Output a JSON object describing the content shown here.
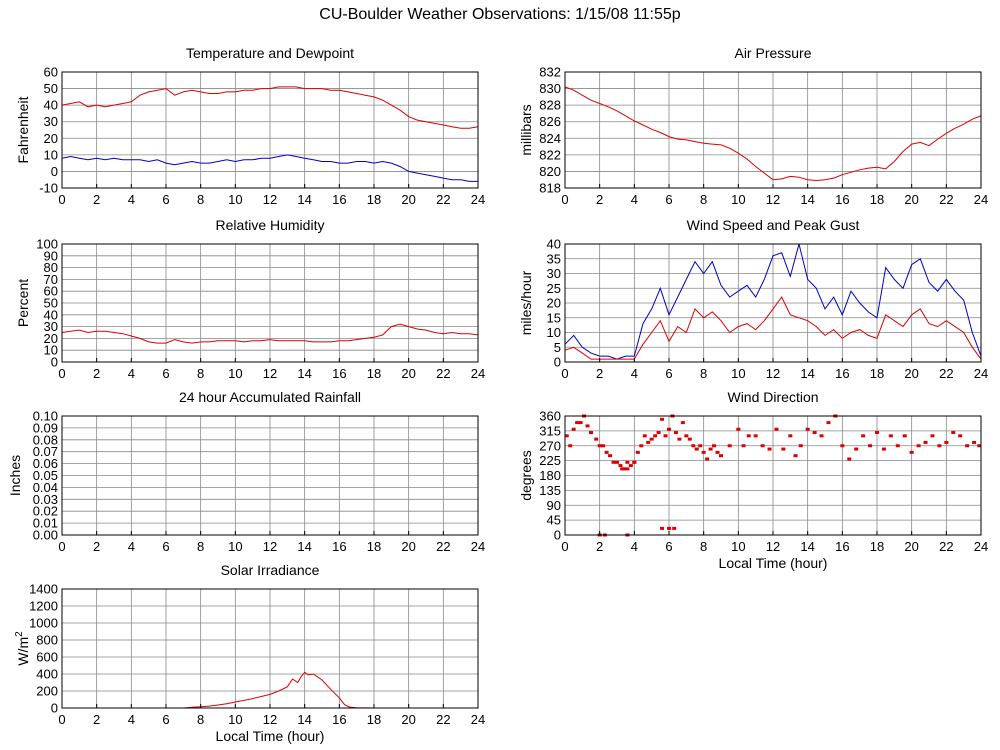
{
  "page": {
    "title": "CU-Boulder Weather Observations: 1/15/08 11:55p"
  },
  "colors": {
    "red": "#dd0000",
    "blue": "#0000cc",
    "grid": "#888888",
    "axis": "#000000"
  },
  "chart_data": [
    {
      "id": "temp",
      "type": "line",
      "title": "Temperature and Dewpoint",
      "ylabel": "Fahrenheit",
      "xlabel": "",
      "xlim": [
        0,
        24
      ],
      "ylim": [
        -10,
        60
      ],
      "xticks": [
        "0",
        "2",
        "4",
        "6",
        "8",
        "10",
        "12",
        "14",
        "16",
        "18",
        "20",
        "22",
        "24"
      ],
      "yticks": [
        "-10",
        "0",
        "10",
        "20",
        "30",
        "40",
        "50",
        "60"
      ],
      "grid": true,
      "series": [
        {
          "color": "#dd0000",
          "x": [
            0,
            0.5,
            1,
            1.5,
            2,
            2.5,
            3,
            3.5,
            4,
            4.5,
            5,
            5.5,
            6,
            6.5,
            7,
            7.5,
            8,
            8.5,
            9,
            9.5,
            10,
            10.5,
            11,
            11.5,
            12,
            12.5,
            13,
            13.5,
            14,
            14.5,
            15,
            15.5,
            16,
            16.5,
            17,
            17.5,
            18,
            18.5,
            19,
            19.5,
            20,
            20.5,
            21,
            21.5,
            22,
            22.5,
            23,
            23.5,
            24
          ],
          "y": [
            40,
            41,
            42,
            39,
            40,
            39,
            40,
            41,
            42,
            46,
            48,
            49,
            50,
            46,
            48,
            49,
            48,
            47,
            47,
            48,
            48,
            49,
            49,
            50,
            50,
            51,
            51,
            51,
            50,
            50,
            50,
            49,
            49,
            48,
            47,
            46,
            45,
            43,
            40,
            37,
            33,
            31,
            30,
            29,
            28,
            27,
            26,
            26,
            27
          ]
        },
        {
          "color": "#0000cc",
          "x": [
            0,
            0.5,
            1,
            1.5,
            2,
            2.5,
            3,
            3.5,
            4,
            4.5,
            5,
            5.5,
            6,
            6.5,
            7,
            7.5,
            8,
            8.5,
            9,
            9.5,
            10,
            10.5,
            11,
            11.5,
            12,
            12.5,
            13,
            13.5,
            14,
            14.5,
            15,
            15.5,
            16,
            16.5,
            17,
            17.5,
            18,
            18.5,
            19,
            19.5,
            20,
            20.5,
            21,
            21.5,
            22,
            22.5,
            23,
            23.5,
            24
          ],
          "y": [
            8,
            9,
            8,
            7,
            8,
            7,
            8,
            7,
            7,
            7,
            6,
            7,
            5,
            4,
            5,
            6,
            5,
            5,
            6,
            7,
            6,
            7,
            7,
            8,
            8,
            9,
            10,
            9,
            8,
            7,
            6,
            6,
            5,
            5,
            6,
            6,
            5,
            6,
            5,
            3,
            0,
            -1,
            -2,
            -3,
            -4,
            -5,
            -5,
            -6,
            -6
          ]
        }
      ]
    },
    {
      "id": "pressure",
      "type": "line",
      "title": "Air Pressure",
      "ylabel": "millibars",
      "xlabel": "",
      "xlim": [
        0,
        24
      ],
      "ylim": [
        818,
        832
      ],
      "xticks": [
        "0",
        "2",
        "4",
        "6",
        "8",
        "10",
        "12",
        "14",
        "16",
        "18",
        "20",
        "22",
        "24"
      ],
      "yticks": [
        "818",
        "820",
        "822",
        "824",
        "826",
        "828",
        "830",
        "832"
      ],
      "grid": true,
      "series": [
        {
          "color": "#dd0000",
          "x": [
            0,
            0.5,
            1,
            1.5,
            2,
            2.5,
            3,
            3.5,
            4,
            4.5,
            5,
            5.5,
            6,
            6.5,
            7,
            7.5,
            8,
            8.5,
            9,
            9.5,
            10,
            10.5,
            11,
            11.5,
            12,
            12.5,
            13,
            13.5,
            14,
            14.5,
            15,
            15.5,
            16,
            16.5,
            17,
            17.5,
            18,
            18.5,
            19,
            19.5,
            20,
            20.5,
            21,
            21.5,
            22,
            22.5,
            23,
            23.5,
            24
          ],
          "y": [
            830.2,
            829.8,
            829.2,
            828.6,
            828.2,
            827.8,
            827.3,
            826.7,
            826.1,
            825.6,
            825.1,
            824.7,
            824.2,
            823.9,
            823.8,
            823.6,
            823.4,
            823.3,
            823.2,
            822.8,
            822.2,
            821.5,
            820.6,
            819.8,
            819.0,
            819.1,
            819.4,
            819.3,
            819.0,
            818.9,
            819.0,
            819.2,
            819.6,
            819.9,
            820.2,
            820.4,
            820.5,
            820.3,
            821.2,
            822.4,
            823.3,
            823.5,
            823.1,
            823.9,
            824.6,
            825.2,
            825.7,
            826.3,
            826.7
          ]
        }
      ]
    },
    {
      "id": "rh",
      "type": "line",
      "title": "Relative Humidity",
      "ylabel": "Percent",
      "xlabel": "",
      "xlim": [
        0,
        24
      ],
      "ylim": [
        0,
        100
      ],
      "xticks": [
        "0",
        "2",
        "4",
        "6",
        "8",
        "10",
        "12",
        "14",
        "16",
        "18",
        "20",
        "22",
        "24"
      ],
      "yticks": [
        "0",
        "10",
        "20",
        "30",
        "40",
        "50",
        "60",
        "70",
        "80",
        "90",
        "100"
      ],
      "grid": true,
      "series": [
        {
          "color": "#dd0000",
          "x": [
            0,
            0.5,
            1,
            1.5,
            2,
            2.5,
            3,
            3.5,
            4,
            4.5,
            5,
            5.5,
            6,
            6.5,
            7,
            7.5,
            8,
            8.5,
            9,
            9.5,
            10,
            10.5,
            11,
            11.5,
            12,
            12.5,
            13,
            13.5,
            14,
            14.5,
            15,
            15.5,
            16,
            16.5,
            17,
            17.5,
            18,
            18.5,
            19,
            19.5,
            20,
            20.5,
            21,
            21.5,
            22,
            22.5,
            23,
            23.5,
            24
          ],
          "y": [
            25,
            26,
            27,
            25,
            26,
            26,
            25,
            24,
            22,
            20,
            17,
            16,
            16,
            19,
            17,
            16,
            17,
            17,
            18,
            18,
            18,
            17,
            18,
            18,
            19,
            18,
            18,
            18,
            18,
            17,
            17,
            17,
            18,
            18,
            19,
            20,
            21,
            23,
            30,
            32,
            30,
            28,
            27,
            25,
            24,
            25,
            24,
            24,
            23
          ]
        }
      ]
    },
    {
      "id": "wind",
      "type": "line",
      "title": "Wind Speed and Peak Gust",
      "ylabel": "miles/hour",
      "xlabel": "",
      "xlim": [
        0,
        24
      ],
      "ylim": [
        0,
        40
      ],
      "xticks": [
        "0",
        "2",
        "4",
        "6",
        "8",
        "10",
        "12",
        "14",
        "16",
        "18",
        "20",
        "22",
        "24"
      ],
      "yticks": [
        "0",
        "5",
        "10",
        "15",
        "20",
        "25",
        "30",
        "35",
        "40"
      ],
      "grid": true,
      "series": [
        {
          "color": "#0000cc",
          "x": [
            0,
            0.5,
            1,
            1.5,
            2,
            2.5,
            3,
            3.5,
            4,
            4.5,
            5,
            5.5,
            6,
            6.5,
            7,
            7.5,
            8,
            8.5,
            9,
            9.5,
            10,
            10.5,
            11,
            11.5,
            12,
            12.5,
            13,
            13.5,
            14,
            14.5,
            15,
            15.5,
            16,
            16.5,
            17,
            17.5,
            18,
            18.5,
            19,
            19.5,
            20,
            20.5,
            21,
            21.5,
            22,
            22.5,
            23,
            23.5,
            24
          ],
          "y": [
            6,
            9,
            5,
            3,
            2,
            2,
            1,
            2,
            2,
            13,
            18,
            25,
            16,
            22,
            28,
            34,
            30,
            34,
            26,
            22,
            24,
            26,
            22,
            28,
            36,
            37,
            29,
            40,
            28,
            25,
            18,
            22,
            16,
            24,
            20,
            17,
            15,
            32,
            28,
            25,
            33,
            35,
            27,
            24,
            28,
            24,
            21,
            10,
            2
          ]
        },
        {
          "color": "#dd0000",
          "x": [
            0,
            0.5,
            1,
            1.5,
            2,
            2.5,
            3,
            3.5,
            4,
            4.5,
            5,
            5.5,
            6,
            6.5,
            7,
            7.5,
            8,
            8.5,
            9,
            9.5,
            10,
            10.5,
            11,
            11.5,
            12,
            12.5,
            13,
            13.5,
            14,
            14.5,
            15,
            15.5,
            16,
            16.5,
            17,
            17.5,
            18,
            18.5,
            19,
            19.5,
            20,
            20.5,
            21,
            21.5,
            22,
            22.5,
            23,
            23.5,
            24
          ],
          "y": [
            4,
            5,
            3,
            1,
            1,
            1,
            1,
            1,
            1,
            6,
            10,
            14,
            7,
            12,
            10,
            18,
            15,
            17,
            14,
            10,
            12,
            13,
            11,
            14,
            18,
            22,
            16,
            15,
            14,
            12,
            9,
            11,
            8,
            10,
            11,
            9,
            8,
            16,
            14,
            12,
            16,
            18,
            13,
            12,
            14,
            12,
            10,
            5,
            1
          ]
        }
      ]
    },
    {
      "id": "rain",
      "type": "line",
      "title": "24 hour Accumulated Rainfall",
      "ylabel": "Inches",
      "xlabel": "",
      "xlim": [
        0,
        24
      ],
      "ylim": [
        0,
        0.1
      ],
      "xticks": [
        "0",
        "2",
        "4",
        "6",
        "8",
        "10",
        "12",
        "14",
        "16",
        "18",
        "20",
        "22",
        "24"
      ],
      "yticks": [
        "0.00",
        "0.01",
        "0.02",
        "0.03",
        "0.04",
        "0.05",
        "0.06",
        "0.07",
        "0.08",
        "0.09",
        "0.10"
      ],
      "grid": true,
      "series": [
        {
          "color": "#dd0000",
          "x": [
            0,
            24
          ],
          "y": [
            0,
            0
          ]
        }
      ]
    },
    {
      "id": "winddir",
      "type": "scatter",
      "title": "Wind Direction",
      "ylabel": "degrees",
      "xlabel": "Local Time (hour)",
      "xlim": [
        0,
        24
      ],
      "ylim": [
        0,
        360
      ],
      "xticks": [
        "0",
        "2",
        "4",
        "6",
        "8",
        "10",
        "12",
        "14",
        "16",
        "18",
        "20",
        "22",
        "24"
      ],
      "yticks": [
        "0",
        "45",
        "90",
        "135",
        "180",
        "225",
        "270",
        "315",
        "360"
      ],
      "grid": true,
      "series": [
        {
          "color": "#dd0000",
          "x": [
            0.1,
            0.3,
            0.5,
            0.7,
            0.9,
            1.1,
            1.3,
            1.5,
            1.8,
            2.0,
            2.2,
            2.4,
            2.6,
            2.8,
            3.0,
            3.2,
            3.4,
            3.6,
            3.8,
            4.0,
            4.2,
            4.4,
            4.6,
            4.8,
            5.0,
            5.2,
            5.4,
            5.6,
            5.8,
            6.0,
            6.2,
            6.4,
            6.6,
            6.8,
            7.0,
            7.2,
            7.4,
            7.6,
            7.8,
            8.0,
            8.2,
            8.4,
            8.6,
            8.8,
            9.0,
            9.5,
            10.0,
            10.3,
            10.6,
            11.0,
            11.4,
            11.8,
            12.2,
            12.6,
            13.0,
            13.3,
            13.6,
            14.0,
            14.4,
            14.8,
            15.2,
            15.6,
            16.0,
            16.4,
            16.8,
            17.2,
            17.6,
            18.0,
            18.4,
            18.8,
            19.2,
            19.6,
            20.0,
            20.4,
            20.8,
            21.2,
            21.6,
            22.0,
            22.4,
            22.8,
            23.2,
            23.6,
            23.9,
            2.0,
            2.3,
            3.6,
            5.6,
            6.0,
            6.3,
            3.3,
            3.6,
            4.0
          ],
          "y": [
            300,
            270,
            320,
            340,
            340,
            360,
            330,
            310,
            290,
            270,
            270,
            250,
            240,
            220,
            220,
            210,
            200,
            200,
            210,
            220,
            250,
            270,
            300,
            280,
            290,
            300,
            310,
            350,
            300,
            320,
            360,
            310,
            290,
            340,
            300,
            290,
            270,
            260,
            270,
            250,
            230,
            260,
            270,
            250,
            240,
            270,
            320,
            270,
            300,
            300,
            270,
            260,
            320,
            260,
            300,
            240,
            270,
            320,
            310,
            300,
            340,
            360,
            270,
            230,
            260,
            300,
            270,
            310,
            260,
            300,
            270,
            300,
            250,
            270,
            280,
            300,
            270,
            280,
            310,
            300,
            270,
            280,
            270,
            0,
            0,
            0,
            20,
            20,
            20,
            200,
            220,
            220
          ]
        }
      ]
    },
    {
      "id": "solar",
      "type": "line",
      "title": "Solar Irradiance",
      "ylabel": "W/m",
      "ylabel_sup": "2",
      "xlabel": "Local Time (hour)",
      "xlim": [
        0,
        24
      ],
      "ylim": [
        0,
        1400
      ],
      "xticks": [
        "0",
        "2",
        "4",
        "6",
        "8",
        "10",
        "12",
        "14",
        "16",
        "18",
        "20",
        "22",
        "24"
      ],
      "yticks": [
        "0",
        "200",
        "400",
        "600",
        "800",
        "1000",
        "1200",
        "1400"
      ],
      "grid": true,
      "series": [
        {
          "color": "#dd0000",
          "x": [
            0,
            7,
            7.5,
            8,
            8.5,
            9,
            9.5,
            10,
            10.5,
            11,
            11.5,
            12,
            12.5,
            13,
            13.3,
            13.6,
            13.8,
            14,
            14.2,
            14.5,
            15,
            15.5,
            16,
            16.3,
            16.6,
            17,
            18,
            24
          ],
          "y": [
            0,
            0,
            8,
            15,
            22,
            35,
            50,
            70,
            90,
            110,
            135,
            160,
            200,
            250,
            340,
            300,
            370,
            420,
            390,
            400,
            330,
            220,
            120,
            40,
            10,
            2,
            0,
            0
          ]
        }
      ]
    }
  ]
}
